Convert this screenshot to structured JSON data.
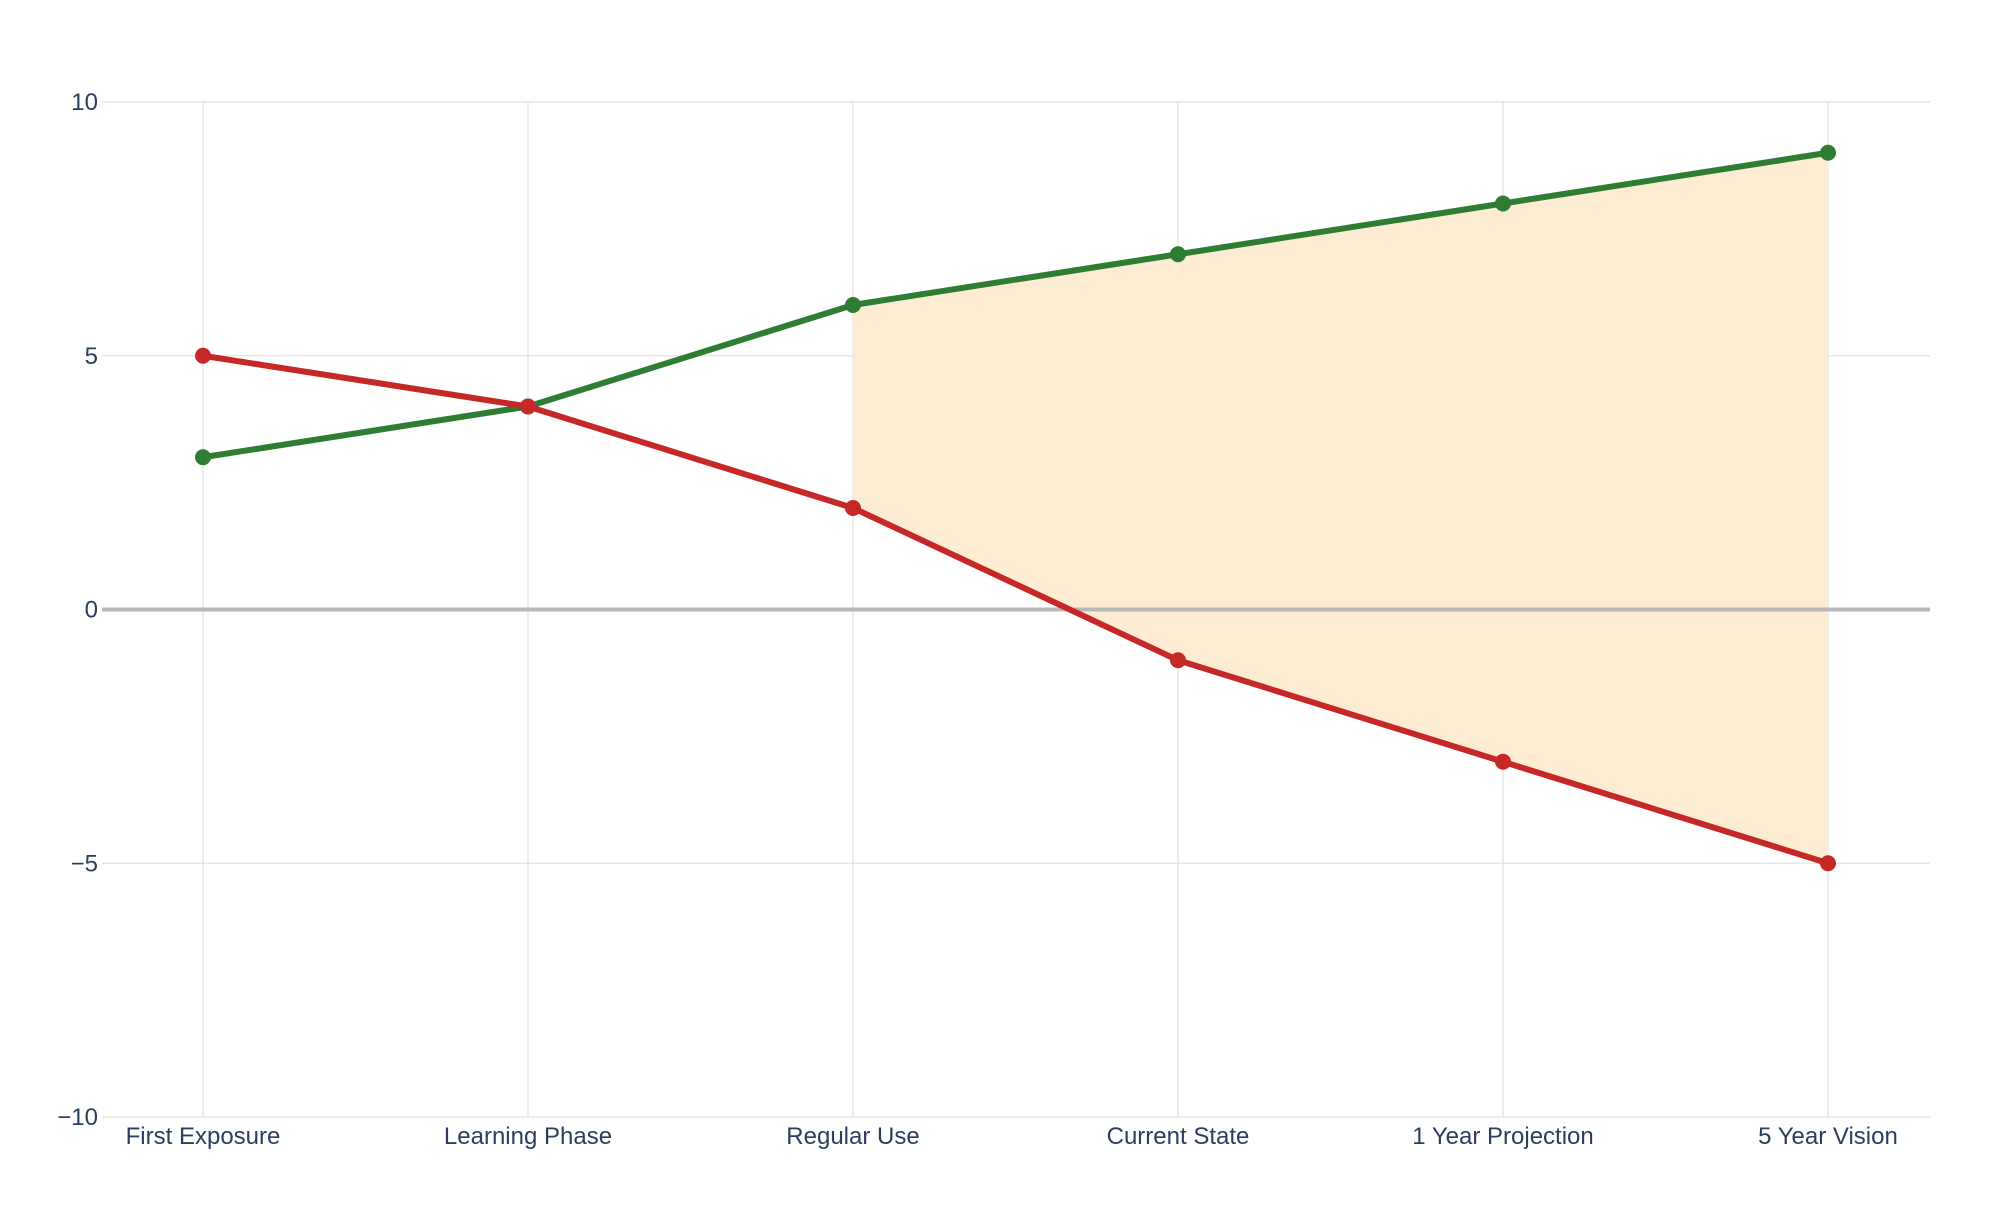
{
  "chart_data": {
    "type": "line",
    "categories": [
      "First Exposure",
      "Learning Phase",
      "Regular Use",
      "Current State",
      "1 Year Projection",
      "5 Year Vision"
    ],
    "series": [
      {
        "values": [
          3,
          4,
          6,
          7,
          8,
          9
        ],
        "color": "#2e7d32"
      },
      {
        "values": [
          5,
          4,
          2,
          -1,
          -3,
          -5
        ],
        "color": "#c62828"
      }
    ],
    "shaded_region": {
      "from_category": "Regular Use",
      "to_category": "5 Year Vision",
      "between": "series",
      "color": "#fdebd0"
    },
    "ylim": [
      -10,
      10
    ],
    "y_ticks": [
      10,
      5,
      0,
      -5,
      -10
    ],
    "y_tick_labels": [
      "10",
      "5",
      "0",
      "−5",
      "−10"
    ],
    "title": "",
    "xlabel": "",
    "ylabel": "",
    "grid": true,
    "zero_line": true,
    "legend": "none"
  }
}
